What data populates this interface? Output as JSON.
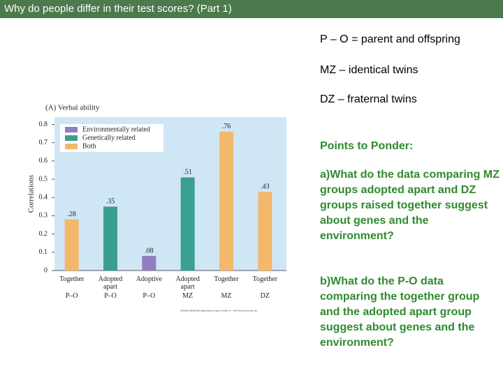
{
  "slide_title": "Why do people differ in their test scores? (Part 1)",
  "definitions": [
    "P – O = parent and offspring",
    "MZ – identical twins",
    "DZ – fraternal twins"
  ],
  "ponder_heading": "Points to Ponder:",
  "ponder_questions": [
    "a)What do the data comparing MZ groups adopted apart and DZ groups raised together suggest about genes and the environment?",
    "b)What do the P-O data comparing the together group and the adopted apart group suggest about genes and the environment?"
  ],
  "chart_data": {
    "type": "bar",
    "title": "(A) Verbal ability",
    "y_label": "Correlations",
    "categories": [
      "Together",
      "Adopted apart",
      "Adoptive",
      "Adopted apart",
      "Together",
      "Together"
    ],
    "groups": [
      "P–O",
      "P–O",
      "P–O",
      "MZ",
      "MZ",
      "DZ"
    ],
    "values": [
      0.28,
      0.35,
      0.08,
      0.51,
      0.76,
      0.43
    ],
    "value_labels": [
      ".28",
      ".35",
      ".08",
      ".51",
      ".76",
      ".43"
    ],
    "colors": [
      "#f3b86b",
      "#3a9f90",
      "#9080c0",
      "#3a9f90",
      "#f3b86b",
      "#f3b86b"
    ],
    "legend": [
      {
        "name": "Environmentally related",
        "color": "#9080c0"
      },
      {
        "name": "Genetically related",
        "color": "#3a9f90"
      },
      {
        "name": "Both",
        "color": "#f3b86b"
      }
    ],
    "ylim": [
      0,
      0.84
    ],
    "yticks": [
      0,
      0.1,
      0.2,
      0.3,
      0.4,
      0.5,
      0.6,
      0.7,
      0.8
    ],
    "source": "ANIMAL BEHAVIOR, Eighth Edition, Figure 3.16 (Part 1) © 2005 Sinauer Associates, Inc."
  }
}
